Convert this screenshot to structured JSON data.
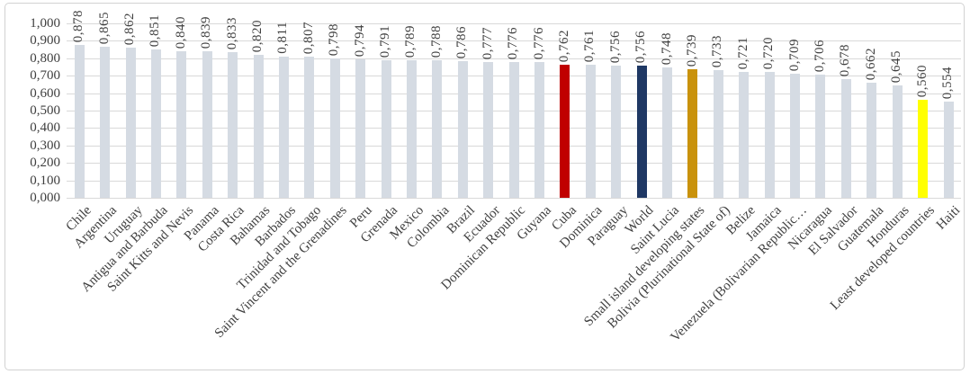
{
  "chart_data": {
    "type": "bar",
    "title": "",
    "xlabel": "",
    "ylabel": "",
    "ylim": [
      0,
      1
    ],
    "ytick_step": 0.1,
    "grid": true,
    "legend_position": "none",
    "decimal_separator": ",",
    "ytick_labels": [
      "0,000",
      "0,100",
      "0,200",
      "0,300",
      "0,400",
      "0,500",
      "0,600",
      "0,700",
      "0,800",
      "0,900",
      "1,000"
    ],
    "colors": {
      "default_bar": "#d5dbe3",
      "highlight_red": "#c00000",
      "highlight_navy": "#1f3864",
      "highlight_gold": "#c9920c",
      "highlight_yellow": "#ffff00",
      "gridline": "#d9d9d9",
      "label_text": "#3f3f3f"
    },
    "categories": [
      "Chile",
      "Argentina",
      "Uruguay",
      "Antigua and Barbuda",
      "Saint Kitts and Nevis",
      "Panama",
      "Costa Rica",
      "Bahamas",
      "Barbados",
      "Trinidad and Tobago",
      "Saint Vincent and the Grenadines",
      "Peru",
      "Grenada",
      "Mexico",
      "Colombia",
      "Brazil",
      "Ecuador",
      "Dominican Republic",
      "Guyana",
      "Cuba",
      "Dominica",
      "Paraguay",
      "World",
      "Saint Lucia",
      "Small island developing states",
      "Bolivia (Plurinational State of)",
      "Belize",
      "Jamaica",
      "Venezuela (Bolivarian Republic…",
      "Nicaragua",
      "El Salvador",
      "Guatemala",
      "Honduras",
      "Least developed countries",
      "Haiti"
    ],
    "values": [
      0.878,
      0.865,
      0.862,
      0.851,
      0.84,
      0.839,
      0.833,
      0.82,
      0.811,
      0.807,
      0.798,
      0.794,
      0.791,
      0.789,
      0.788,
      0.786,
      0.777,
      0.776,
      0.776,
      0.762,
      0.761,
      0.756,
      0.756,
      0.748,
      0.739,
      0.733,
      0.721,
      0.72,
      0.709,
      0.706,
      0.678,
      0.662,
      0.645,
      0.56,
      0.554
    ],
    "value_labels": [
      "0,878",
      "0,865",
      "0,862",
      "0,851",
      "0,840",
      "0,839",
      "0,833",
      "0,820",
      "0,811",
      "0,807",
      "0,798",
      "0,794",
      "0,791",
      "0,789",
      "0,788",
      "0,786",
      "0,777",
      "0,776",
      "0,776",
      "0,762",
      "0,761",
      "0,756",
      "0,756",
      "0,748",
      "0,739",
      "0,733",
      "0,721",
      "0,720",
      "0,709",
      "0,706",
      "0,678",
      "0,662",
      "0,645",
      "0,560",
      "0,554"
    ],
    "bar_colors": [
      null,
      null,
      null,
      null,
      null,
      null,
      null,
      null,
      null,
      null,
      null,
      null,
      null,
      null,
      null,
      null,
      null,
      null,
      null,
      "#c00000",
      null,
      null,
      "#1f3864",
      null,
      "#c9920c",
      null,
      null,
      null,
      null,
      null,
      null,
      null,
      null,
      "#ffff00",
      null
    ]
  }
}
